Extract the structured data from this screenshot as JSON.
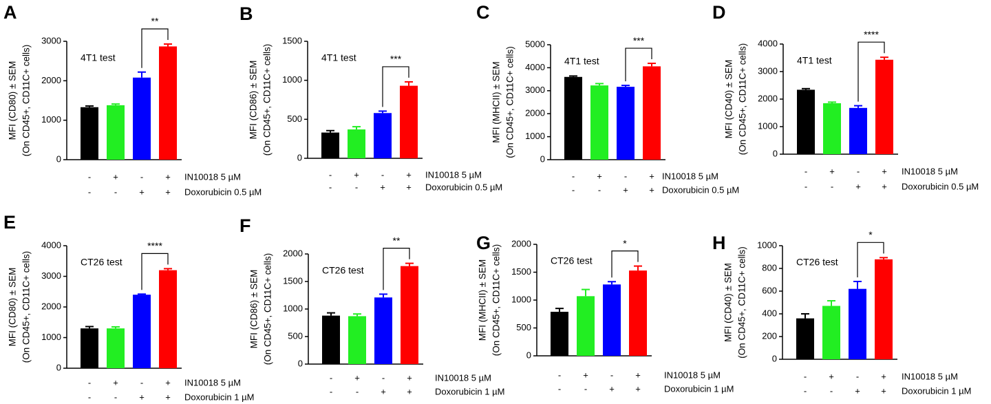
{
  "chart_data": [
    {
      "type": "bar",
      "panel": "A",
      "ylabel": [
        "MFI (CD80) ± SEM",
        "(On CD45+, CD11C+ cells)"
      ],
      "annotation": "4T1 test",
      "significance": "**",
      "values": [
        1330,
        1380,
        2080,
        2870
      ],
      "errors": [
        30,
        30,
        140,
        60
      ],
      "colors": [
        "#000000",
        "#22ee22",
        "#0000ff",
        "#ff0000"
      ],
      "ylim": [
        0,
        3000
      ],
      "yticks": [
        0,
        1000,
        2000,
        3000
      ],
      "treatments": [
        {
          "name": "IN10018 5 µM",
          "signs": [
            "-",
            "+",
            "-",
            "+"
          ]
        },
        {
          "name": "Doxorubicin 0.5 µM",
          "signs": [
            "-",
            "-",
            "+",
            "+"
          ]
        }
      ]
    },
    {
      "type": "bar",
      "panel": "B",
      "ylabel": [
        "MFI (CD86) ± SEM",
        "(On CD45+, CD11C+ cells)"
      ],
      "annotation": "4T1 test",
      "significance": "***",
      "values": [
        330,
        370,
        580,
        930
      ],
      "errors": [
        25,
        35,
        25,
        50
      ],
      "colors": [
        "#000000",
        "#22ee22",
        "#0000ff",
        "#ff0000"
      ],
      "ylim": [
        0,
        1500
      ],
      "yticks": [
        0,
        500,
        1000,
        1500
      ],
      "treatments": [
        {
          "name": "IN10018 5 µM",
          "signs": [
            "-",
            "+",
            "-",
            "+"
          ]
        },
        {
          "name": "Doxorubicin 0.5 µM",
          "signs": [
            "-",
            "-",
            "+",
            "+"
          ]
        }
      ]
    },
    {
      "type": "bar",
      "panel": "C",
      "ylabel": [
        "MFI (MHCII) ± SEM",
        "(On CD45+, CD11C+ cells)"
      ],
      "annotation": "4T1 test",
      "significance": "***",
      "values": [
        3600,
        3230,
        3170,
        4060
      ],
      "errors": [
        40,
        80,
        60,
        130
      ],
      "colors": [
        "#000000",
        "#22ee22",
        "#0000ff",
        "#ff0000"
      ],
      "ylim": [
        0,
        5000
      ],
      "yticks": [
        0,
        1000,
        2000,
        3000,
        4000,
        5000
      ],
      "treatments": [
        {
          "name": "IN10018 5 µM",
          "signs": [
            "-",
            "+",
            "-",
            "+"
          ]
        },
        {
          "name": "Doxorubicin 0.5 µM",
          "signs": [
            "-",
            "-",
            "+",
            "+"
          ]
        }
      ]
    },
    {
      "type": "bar",
      "panel": "D",
      "ylabel": [
        "MFI (CD40) ± SEM",
        "(On CD45+, CD11C+ cells)"
      ],
      "annotation": "4T1 test",
      "significance": "****",
      "values": [
        2340,
        1850,
        1680,
        3430
      ],
      "errors": [
        40,
        40,
        80,
        90
      ],
      "colors": [
        "#000000",
        "#22ee22",
        "#0000ff",
        "#ff0000"
      ],
      "ylim": [
        0,
        4000
      ],
      "yticks": [
        0,
        1000,
        2000,
        3000,
        4000
      ],
      "treatments": [
        {
          "name": "IN10018 5 µM",
          "signs": [
            "-",
            "+",
            "-",
            "+"
          ]
        },
        {
          "name": "Doxorubicin 0.5 µM",
          "signs": [
            "-",
            "-",
            "+",
            "+"
          ]
        }
      ]
    },
    {
      "type": "bar",
      "panel": "E",
      "ylabel": [
        "MFI (CD80) ± SEM",
        "(On CD45+, CD11C+ cells)"
      ],
      "annotation": "CT26 test",
      "significance": "****",
      "values": [
        1300,
        1300,
        2400,
        3200
      ],
      "errors": [
        60,
        50,
        20,
        50
      ],
      "colors": [
        "#000000",
        "#22ee22",
        "#0000ff",
        "#ff0000"
      ],
      "ylim": [
        0,
        4000
      ],
      "yticks": [
        0,
        1000,
        2000,
        3000,
        4000
      ],
      "treatments": [
        {
          "name": "IN10018 5 µM",
          "signs": [
            "-",
            "+",
            "-",
            "+"
          ]
        },
        {
          "name": "Doxorubicin 1 µM",
          "signs": [
            "-",
            "-",
            "+",
            "+"
          ]
        }
      ]
    },
    {
      "type": "bar",
      "panel": "F",
      "ylabel": [
        "MFI (CD86) ± SEM",
        "(On CD45+, CD11C+ cells)"
      ],
      "annotation": "CT26 test",
      "significance": "**",
      "values": [
        880,
        870,
        1210,
        1780
      ],
      "errors": [
        50,
        40,
        60,
        50
      ],
      "colors": [
        "#000000",
        "#22ee22",
        "#0000ff",
        "#ff0000"
      ],
      "ylim": [
        0,
        2000
      ],
      "yticks": [
        0,
        500,
        1000,
        1500,
        2000
      ],
      "treatments": [
        {
          "name": "IN10018 5 µM",
          "signs": [
            "-",
            "+",
            "-",
            "+"
          ]
        },
        {
          "name": "Doxorubicin 1 µM",
          "signs": [
            "-",
            "-",
            "+",
            "+"
          ]
        }
      ]
    },
    {
      "type": "bar",
      "panel": "G",
      "ylabel": [
        "MFI (MHCII) ± SEM",
        "(On CD45+, CD11C+ cells)"
      ],
      "annotation": "CT26 test",
      "significance": "*",
      "values": [
        790,
        1070,
        1280,
        1530
      ],
      "errors": [
        60,
        120,
        50,
        80
      ],
      "colors": [
        "#000000",
        "#22ee22",
        "#0000ff",
        "#ff0000"
      ],
      "ylim": [
        0,
        2000
      ],
      "yticks": [
        0,
        500,
        1000,
        1500,
        2000
      ],
      "treatments": [
        {
          "name": "IN10018 5 µM",
          "signs": [
            "-",
            "+",
            "-",
            "+"
          ]
        },
        {
          "name": "Doxorubicin 1 µM",
          "signs": [
            "-",
            "-",
            "+",
            "+"
          ]
        }
      ]
    },
    {
      "type": "bar",
      "panel": "H",
      "ylabel": [
        "MFI (CD40) ± SEM",
        "(On CD45+, CD11C+ cells)"
      ],
      "annotation": "CT26 test",
      "significance": "*",
      "values": [
        360,
        470,
        620,
        880
      ],
      "errors": [
        40,
        45,
        65,
        15
      ],
      "colors": [
        "#000000",
        "#22ee22",
        "#0000ff",
        "#ff0000"
      ],
      "ylim": [
        0,
        1000
      ],
      "yticks": [
        0,
        200,
        400,
        600,
        800,
        1000
      ],
      "treatments": [
        {
          "name": "IN10018 5 µM",
          "signs": [
            "-",
            "+",
            "-",
            "+"
          ]
        },
        {
          "name": "Doxorubicin 1 µM",
          "signs": [
            "-",
            "-",
            "+",
            "+"
          ]
        }
      ]
    }
  ]
}
